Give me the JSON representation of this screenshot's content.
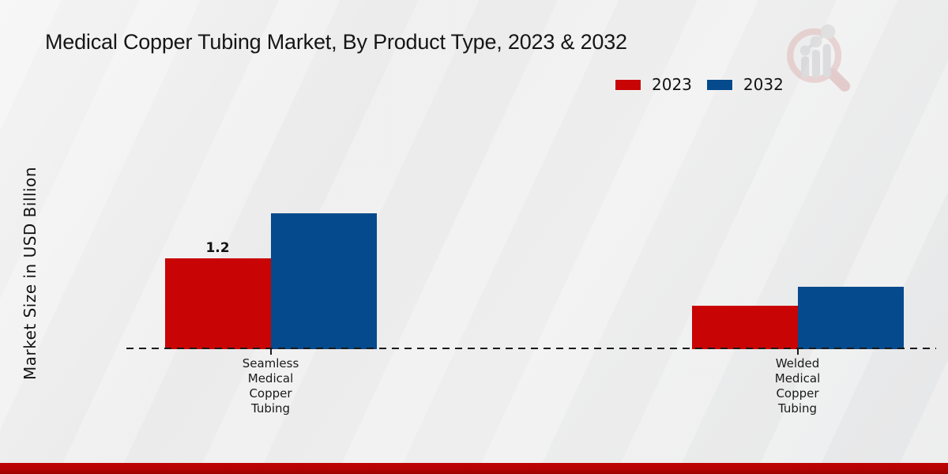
{
  "page": {
    "title": "Medical Copper Tubing Market, By Product Type, 2023 & 2032"
  },
  "axes": {
    "ylabel": "Market Size in USD Billion"
  },
  "legend": {
    "items": [
      {
        "label": "2023",
        "color": "#c80404"
      },
      {
        "label": "2032",
        "color": "#054a8c"
      }
    ]
  },
  "colors": {
    "series_2023": "#c80404",
    "series_2032": "#054a8c",
    "baseline": "#1a1a1a",
    "footer_strip": "#b30202",
    "background": "#ebebeb"
  },
  "watermark": {
    "description": "faint magnifying-glass logo with rising bar chart inside",
    "ring_color": "#d9a3a3",
    "bars_color": "#b9babe"
  },
  "chart_data": {
    "type": "bar",
    "title": "Medical Copper Tubing Market, By Product Type, 2023 & 2032",
    "xlabel": "",
    "ylabel": "Market Size in USD Billion",
    "categories": [
      "Seamless Medical Copper Tubing",
      "Welded Medical Copper Tubing"
    ],
    "series": [
      {
        "name": "2023",
        "color": "#c80404",
        "values": [
          1.2,
          0.57
        ]
      },
      {
        "name": "2032",
        "color": "#054a8c",
        "values": [
          1.8,
          0.83
        ]
      }
    ],
    "value_labels": [
      {
        "series_index": 0,
        "category_index": 0,
        "text": "1.2"
      }
    ],
    "ylim": [
      0,
      2.0
    ],
    "grid": false,
    "y_ticks_visible": false,
    "baseline_style": "dashed",
    "legend_position": "top-right"
  }
}
